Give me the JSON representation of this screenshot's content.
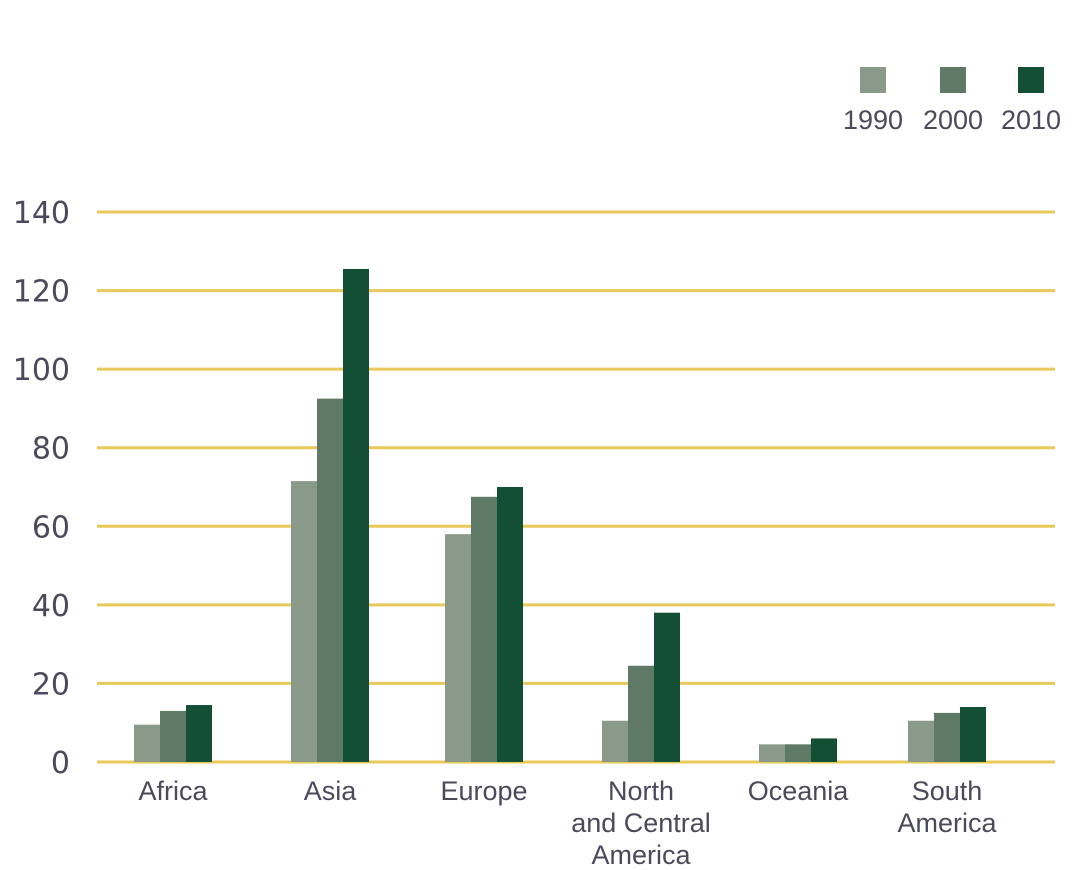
{
  "chart_data": {
    "type": "bar",
    "categories": [
      [
        "Africa"
      ],
      [
        "Asia"
      ],
      [
        "Europe"
      ],
      [
        "North",
        "and Central",
        "America"
      ],
      [
        "Oceania"
      ],
      [
        "South",
        "America"
      ]
    ],
    "series": [
      {
        "name": "1990",
        "color": "#8a9a8a",
        "values": [
          9.5,
          71.5,
          58,
          10.5,
          4.5,
          10.5
        ]
      },
      {
        "name": "2000",
        "color": "#5e7a66",
        "values": [
          13,
          92.5,
          67.5,
          24.5,
          4.5,
          12.5
        ]
      },
      {
        "name": "2010",
        "color": "#124f35",
        "values": [
          14.5,
          125.5,
          70,
          38,
          6,
          14
        ]
      }
    ],
    "ylim": [
      0,
      140
    ],
    "yticks": [
      "0",
      "20",
      "40",
      "60",
      "80",
      "100",
      "120",
      "140"
    ],
    "grid": true,
    "grid_color": "#e8c95a",
    "legend_position": "top-right"
  }
}
